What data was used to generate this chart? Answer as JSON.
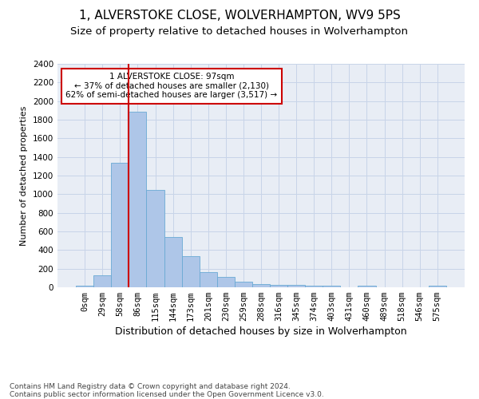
{
  "title1": "1, ALVERSTOKE CLOSE, WOLVERHAMPTON, WV9 5PS",
  "title2": "Size of property relative to detached houses in Wolverhampton",
  "xlabel": "Distribution of detached houses by size in Wolverhampton",
  "ylabel": "Number of detached properties",
  "footnote": "Contains HM Land Registry data © Crown copyright and database right 2024.\nContains public sector information licensed under the Open Government Licence v3.0.",
  "bar_labels": [
    "0sqm",
    "29sqm",
    "58sqm",
    "86sqm",
    "115sqm",
    "144sqm",
    "173sqm",
    "201sqm",
    "230sqm",
    "259sqm",
    "288sqm",
    "316sqm",
    "345sqm",
    "374sqm",
    "403sqm",
    "431sqm",
    "460sqm",
    "489sqm",
    "518sqm",
    "546sqm",
    "575sqm"
  ],
  "bar_values": [
    15,
    125,
    1340,
    1890,
    1050,
    540,
    335,
    165,
    110,
    60,
    38,
    30,
    25,
    20,
    15,
    0,
    15,
    0,
    0,
    0,
    15
  ],
  "bar_color": "#aec6e8",
  "bar_edgecolor": "#6aaad4",
  "vline_x_index": 2.5,
  "vline_color": "#cc0000",
  "annotation_text": "1 ALVERSTOKE CLOSE: 97sqm\n← 37% of detached houses are smaller (2,130)\n62% of semi-detached houses are larger (3,517) →",
  "annotation_box_color": "#cc0000",
  "ylim": [
    0,
    2400
  ],
  "yticks": [
    0,
    200,
    400,
    600,
    800,
    1000,
    1200,
    1400,
    1600,
    1800,
    2000,
    2200,
    2400
  ],
  "grid_color": "#c8d4e8",
  "bg_color": "#e8edf5",
  "title1_fontsize": 11,
  "title2_fontsize": 9.5,
  "xlabel_fontsize": 9,
  "ylabel_fontsize": 8,
  "tick_fontsize": 7.5,
  "annotation_fontsize": 7.5,
  "footnote_fontsize": 6.5
}
